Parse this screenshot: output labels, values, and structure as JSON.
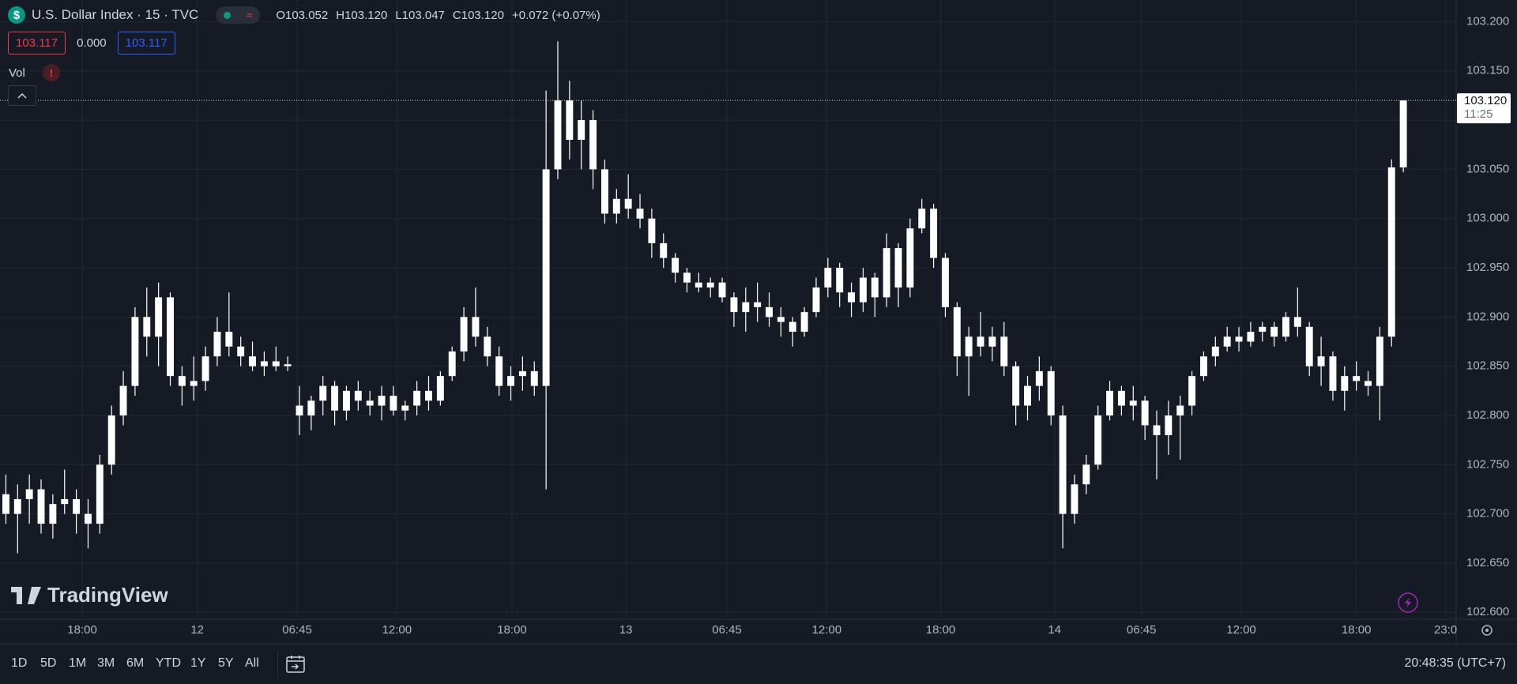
{
  "legend": {
    "title": "U.S. Dollar Index · 15 · TVC",
    "ohlc": [
      {
        "key": "O",
        "value": "103.052"
      },
      {
        "key": "H",
        "value": "103.120"
      },
      {
        "key": "L",
        "value": "103.047"
      },
      {
        "key": "C",
        "value": "103.120"
      }
    ],
    "change": "+0.072 (+0.07%)",
    "sell": "103.117",
    "spread": "0.000",
    "buy": "103.117",
    "indicator": "Vol"
  },
  "watermark": "TradingView",
  "toolbar": {
    "ranges": [
      "1D",
      "5D",
      "1M",
      "3M",
      "6M",
      "YTD",
      "1Y",
      "5Y",
      "All"
    ],
    "clock": "20:48:35 (UTC+7)"
  },
  "chart_data": {
    "type": "candlestick",
    "color": "#ffffff",
    "grid": true,
    "last_price_label": "103.120",
    "countdown": "11:25",
    "xlim": [
      0,
      124
    ],
    "xticks": [
      {
        "value": 7.0,
        "label": "18:00"
      },
      {
        "value": 16.8,
        "label": "12"
      },
      {
        "value": 25.3,
        "label": "06:45"
      },
      {
        "value": 33.8,
        "label": "12:00"
      },
      {
        "value": 43.6,
        "label": "18:00"
      },
      {
        "value": 53.3,
        "label": "13"
      },
      {
        "value": 61.9,
        "label": "06:45"
      },
      {
        "value": 70.4,
        "label": "12:00"
      },
      {
        "value": 80.1,
        "label": "18:00"
      },
      {
        "value": 89.8,
        "label": "14"
      },
      {
        "value": 97.2,
        "label": "06:45"
      },
      {
        "value": 105.7,
        "label": "12:00"
      },
      {
        "value": 115.5,
        "label": "18:00"
      },
      {
        "value": 123.1,
        "label": "23:0"
      }
    ],
    "ylim": [
      102.593,
      103.222
    ],
    "yticks": [
      {
        "value": 103.2,
        "label": "103.200"
      },
      {
        "value": 103.15,
        "label": "103.150"
      },
      {
        "value": 103.1,
        "label": "103.100"
      },
      {
        "value": 103.05,
        "label": "103.050"
      },
      {
        "value": 103.0,
        "label": "103.000"
      },
      {
        "value": 102.95,
        "label": "102.950"
      },
      {
        "value": 102.9,
        "label": "102.900"
      },
      {
        "value": 102.85,
        "label": "102.850"
      },
      {
        "value": 102.8,
        "label": "102.800"
      },
      {
        "value": 102.75,
        "label": "102.750"
      },
      {
        "value": 102.7,
        "label": "102.700"
      },
      {
        "value": 102.65,
        "label": "102.650"
      },
      {
        "value": 102.6,
        "label": "102.600"
      }
    ],
    "open": [
      102.72,
      102.7,
      102.715,
      102.725,
      102.69,
      102.71,
      102.715,
      102.7,
      102.69,
      102.75,
      102.8,
      102.83,
      102.9,
      102.88,
      102.92,
      102.84,
      102.83,
      102.835,
      102.86,
      102.885,
      102.87,
      102.86,
      102.85,
      102.855,
      102.85,
      102.81,
      102.8,
      102.815,
      102.83,
      102.805,
      102.825,
      102.815,
      102.81,
      102.82,
      102.805,
      102.81,
      102.825,
      102.815,
      102.84,
      102.865,
      102.9,
      102.88,
      102.86,
      102.83,
      102.84,
      102.845,
      102.83,
      103.05,
      103.12,
      103.08,
      103.1,
      103.05,
      103.005,
      103.02,
      103.01,
      103.0,
      102.975,
      102.96,
      102.945,
      102.935,
      102.93,
      102.935,
      102.92,
      102.905,
      102.915,
      102.91,
      102.9,
      102.895,
      102.885,
      102.905,
      102.93,
      102.95,
      102.925,
      102.915,
      102.94,
      102.92,
      102.97,
      102.93,
      102.99,
      103.01,
      102.96,
      102.91,
      102.86,
      102.88,
      102.87,
      102.88,
      102.85,
      102.81,
      102.83,
      102.845,
      102.8,
      102.7,
      102.73,
      102.75,
      102.8,
      102.825,
      102.81,
      102.815,
      102.79,
      102.78,
      102.8,
      102.81,
      102.84,
      102.86,
      102.87,
      102.88,
      102.875,
      102.885,
      102.89,
      102.88,
      102.9,
      102.89,
      102.85,
      102.86,
      102.825,
      102.84,
      102.835,
      102.83,
      102.88,
      103.052
    ],
    "high": [
      102.74,
      102.73,
      102.74,
      102.735,
      102.72,
      102.745,
      102.725,
      102.715,
      102.76,
      102.81,
      102.845,
      102.91,
      102.93,
      102.935,
      102.925,
      102.85,
      102.86,
      102.87,
      102.9,
      102.925,
      102.88,
      102.875,
      102.865,
      102.87,
      102.86,
      102.83,
      102.82,
      102.84,
      102.835,
      102.83,
      102.835,
      102.825,
      102.83,
      102.83,
      102.815,
      102.835,
      102.84,
      102.845,
      102.87,
      102.91,
      102.93,
      102.89,
      102.87,
      102.85,
      102.86,
      102.855,
      103.13,
      103.18,
      103.14,
      103.12,
      103.11,
      103.06,
      103.03,
      103.045,
      103.025,
      103.01,
      102.985,
      102.965,
      102.95,
      102.945,
      102.94,
      102.94,
      102.925,
      102.93,
      102.935,
      102.925,
      102.91,
      102.9,
      102.91,
      102.94,
      102.96,
      102.955,
      102.935,
      102.95,
      102.945,
      102.985,
      102.975,
      103.0,
      103.02,
      103.015,
      102.965,
      102.915,
      102.89,
      102.905,
      102.89,
      102.895,
      102.855,
      102.84,
      102.86,
      102.85,
      102.81,
      102.74,
      102.76,
      102.81,
      102.835,
      102.83,
      102.83,
      102.82,
      102.805,
      102.815,
      102.82,
      102.845,
      102.865,
      102.88,
      102.89,
      102.89,
      102.895,
      102.895,
      102.895,
      102.905,
      102.93,
      102.895,
      102.88,
      102.865,
      102.85,
      102.855,
      102.845,
      102.89,
      103.06,
      103.12
    ],
    "low": [
      102.69,
      102.66,
      102.69,
      102.68,
      102.675,
      102.7,
      102.68,
      102.665,
      102.68,
      102.74,
      102.79,
      102.82,
      102.86,
      102.85,
      102.83,
      102.81,
      102.815,
      102.825,
      102.85,
      102.86,
      102.85,
      102.845,
      102.84,
      102.845,
      102.845,
      102.78,
      102.785,
      102.8,
      102.79,
      102.795,
      102.805,
      102.8,
      102.795,
      102.8,
      102.795,
      102.8,
      102.805,
      102.81,
      102.835,
      102.855,
      102.87,
      102.85,
      102.82,
      102.815,
      102.825,
      102.82,
      102.725,
      103.04,
      103.06,
      103.05,
      103.03,
      102.995,
      102.995,
      103.0,
      102.99,
      102.96,
      102.95,
      102.935,
      102.925,
      102.925,
      102.92,
      102.915,
      102.89,
      102.885,
      102.895,
      102.89,
      102.88,
      102.87,
      102.88,
      102.9,
      102.92,
      102.91,
      102.9,
      102.905,
      102.9,
      102.91,
      102.91,
      102.92,
      102.985,
      102.95,
      102.9,
      102.84,
      102.82,
      102.86,
      102.855,
      102.84,
      102.79,
      102.795,
      102.815,
      102.79,
      102.665,
      102.69,
      102.72,
      102.745,
      102.795,
      102.8,
      102.795,
      102.775,
      102.735,
      102.76,
      102.755,
      102.8,
      102.835,
      102.85,
      102.865,
      102.865,
      102.87,
      102.875,
      102.87,
      102.875,
      102.88,
      102.84,
      102.83,
      102.815,
      102.805,
      102.825,
      102.82,
      102.795,
      102.87,
      103.047
    ],
    "close": [
      102.7,
      102.715,
      102.725,
      102.69,
      102.71,
      102.715,
      102.7,
      102.69,
      102.75,
      102.8,
      102.83,
      102.9,
      102.88,
      102.92,
      102.84,
      102.83,
      102.835,
      102.86,
      102.885,
      102.87,
      102.86,
      102.85,
      102.855,
      102.85,
      102.852,
      102.8,
      102.815,
      102.83,
      102.805,
      102.825,
      102.815,
      102.81,
      102.82,
      102.805,
      102.81,
      102.825,
      102.815,
      102.84,
      102.865,
      102.9,
      102.88,
      102.86,
      102.83,
      102.84,
      102.845,
      102.83,
      103.05,
      103.12,
      103.08,
      103.1,
      103.05,
      103.005,
      103.02,
      103.01,
      103.0,
      102.975,
      102.96,
      102.945,
      102.935,
      102.93,
      102.935,
      102.92,
      102.905,
      102.915,
      102.91,
      102.9,
      102.895,
      102.885,
      102.905,
      102.93,
      102.95,
      102.925,
      102.915,
      102.94,
      102.92,
      102.97,
      102.93,
      102.99,
      103.01,
      102.96,
      102.91,
      102.86,
      102.88,
      102.87,
      102.88,
      102.85,
      102.81,
      102.83,
      102.845,
      102.8,
      102.7,
      102.73,
      102.75,
      102.8,
      102.825,
      102.81,
      102.815,
      102.79,
      102.78,
      102.8,
      102.81,
      102.84,
      102.86,
      102.87,
      102.88,
      102.875,
      102.885,
      102.89,
      102.88,
      102.9,
      102.89,
      102.85,
      102.86,
      102.825,
      102.84,
      102.835,
      102.83,
      102.88,
      103.052,
      103.12
    ]
  }
}
